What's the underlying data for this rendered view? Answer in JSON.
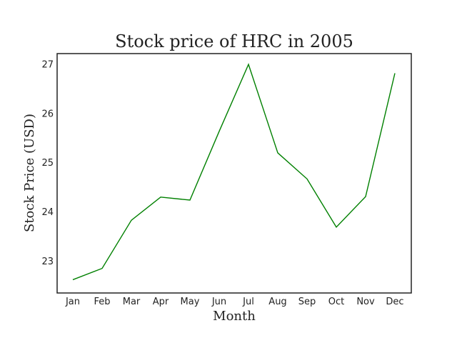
{
  "chart_data": {
    "type": "line",
    "title": "Stock price of HRC in 2005",
    "xlabel": "Month",
    "ylabel": "Stock Price (USD)",
    "categories": [
      "Jan",
      "Feb",
      "Mar",
      "Apr",
      "May",
      "Jun",
      "Jul",
      "Aug",
      "Sep",
      "Oct",
      "Nov",
      "Dec"
    ],
    "values": [
      22.62,
      22.85,
      23.83,
      24.3,
      24.24,
      25.64,
      27.0,
      25.2,
      24.67,
      23.69,
      24.31,
      26.82
    ],
    "ylim": [
      22.35,
      27.22
    ],
    "yticks": [
      23,
      24,
      25,
      26,
      27
    ],
    "color": "#008000",
    "grid": false,
    "legend": "none"
  }
}
